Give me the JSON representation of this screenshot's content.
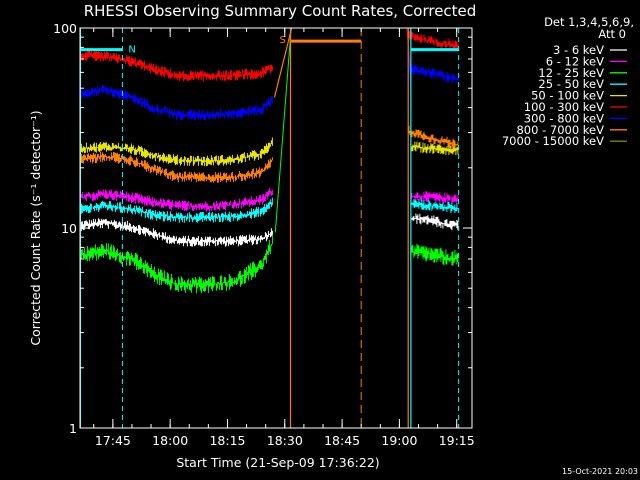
{
  "chart_data": {
    "type": "line",
    "title": "RHESSI Observing Summary Count Rates, Corrected",
    "xlabel": "Start Time (21-Sep-09 17:36:22)",
    "ylabel": "Corrected Count Rate (s⁻¹ detector⁻¹)",
    "y_scale": "log",
    "ylim": [
      1,
      100
    ],
    "y_ticks": [
      {
        "value": 1,
        "label": "1"
      },
      {
        "value": 10,
        "label": "10"
      },
      {
        "value": 100,
        "label": "100"
      }
    ],
    "xlim_minutes": [
      1056.4,
      1159.0
    ],
    "x_ticks": [
      {
        "minutes": 1065,
        "label": "17:45"
      },
      {
        "minutes": 1080,
        "label": "18:00"
      },
      {
        "minutes": 1095,
        "label": "18:15"
      },
      {
        "minutes": 1110,
        "label": "18:30"
      },
      {
        "minutes": 1125,
        "label": "18:45"
      },
      {
        "minutes": 1140,
        "label": "19:00"
      },
      {
        "minutes": 1155,
        "label": "19:15"
      }
    ],
    "legend": {
      "position": "right",
      "header": [
        "Det 1,3,4,5,6,9,",
        "Att 0"
      ]
    },
    "series": [
      {
        "name": "3 - 6 keV",
        "color": "#ffffff",
        "segA": [
          [
            1056.5,
            10.3
          ],
          [
            1063,
            10.6
          ],
          [
            1070,
            10.1
          ],
          [
            1076,
            9.3
          ],
          [
            1082,
            8.6
          ],
          [
            1090,
            8.6
          ],
          [
            1097,
            8.6
          ],
          [
            1104,
            8.8
          ],
          [
            1107,
            9.6
          ]
        ],
        "segB": [
          [
            1143,
            11.2
          ],
          [
            1148,
            11.0
          ],
          [
            1152,
            10.4
          ],
          [
            1155.5,
            10.3
          ]
        ]
      },
      {
        "name": "6 - 12 keV",
        "color": "#ff00ff",
        "segA": [
          [
            1056.5,
            14.2
          ],
          [
            1063,
            14.8
          ],
          [
            1070,
            14.2
          ],
          [
            1076,
            13.4
          ],
          [
            1082,
            12.9
          ],
          [
            1090,
            12.8
          ],
          [
            1097,
            13.1
          ],
          [
            1104,
            13.8
          ],
          [
            1107,
            15.5
          ]
        ],
        "segB": [
          [
            1143,
            14.4
          ],
          [
            1148,
            14.3
          ],
          [
            1152,
            14.1
          ],
          [
            1155.5,
            14.0
          ]
        ]
      },
      {
        "name": "12 - 25 keV",
        "color": "#00ff00",
        "segA": [
          [
            1056.5,
            7.3
          ],
          [
            1063,
            7.7
          ],
          [
            1070,
            7.0
          ],
          [
            1076,
            5.8
          ],
          [
            1082,
            5.2
          ],
          [
            1090,
            5.2
          ],
          [
            1097,
            5.4
          ],
          [
            1104,
            6.5
          ],
          [
            1107,
            8.6
          ]
        ],
        "segB": [
          [
            1143,
            7.6
          ],
          [
            1148,
            7.4
          ],
          [
            1152,
            7.1
          ],
          [
            1155.5,
            7.0
          ]
        ]
      },
      {
        "name": "25 - 50 keV",
        "color": "#00ffff",
        "segA": [
          [
            1056.5,
            12.4
          ],
          [
            1063,
            12.9
          ],
          [
            1070,
            12.4
          ],
          [
            1076,
            11.6
          ],
          [
            1082,
            11.3
          ],
          [
            1090,
            11.3
          ],
          [
            1097,
            11.4
          ],
          [
            1104,
            12.1
          ],
          [
            1107,
            13.6
          ]
        ],
        "segB": [
          [
            1143,
            13.3
          ],
          [
            1148,
            12.9
          ],
          [
            1152,
            12.7
          ],
          [
            1155.5,
            12.6
          ]
        ]
      },
      {
        "name": "50 - 100 keV",
        "color": "#e6e600",
        "segA": [
          [
            1056.5,
            25.0
          ],
          [
            1063,
            25.5
          ],
          [
            1070,
            24.8
          ],
          [
            1076,
            23.0
          ],
          [
            1082,
            21.8
          ],
          [
            1090,
            21.7
          ],
          [
            1097,
            21.9
          ],
          [
            1104,
            23.5
          ],
          [
            1107,
            27.0
          ]
        ],
        "segB": [
          [
            1143,
            25.5
          ],
          [
            1148,
            25.0
          ],
          [
            1152,
            24.8
          ],
          [
            1155.5,
            24.6
          ]
        ]
      },
      {
        "name": "100 - 300 keV",
        "color": "#ff0000",
        "segA": [
          [
            1056.5,
            73.0
          ],
          [
            1063,
            72.0
          ],
          [
            1070,
            68.0
          ],
          [
            1076,
            62.0
          ],
          [
            1082,
            57.5
          ],
          [
            1090,
            57.5
          ],
          [
            1097,
            58.0
          ],
          [
            1104,
            59.5
          ],
          [
            1107,
            64.0
          ]
        ],
        "segB": [
          [
            1142.5,
            93.0
          ],
          [
            1146,
            88.0
          ],
          [
            1150,
            84.0
          ],
          [
            1155.5,
            82.0
          ]
        ]
      },
      {
        "name": "300 - 800 keV",
        "color": "#0000ff",
        "segA": [
          [
            1056.5,
            47.0
          ],
          [
            1063,
            49.0
          ],
          [
            1070,
            45.0
          ],
          [
            1076,
            39.5
          ],
          [
            1082,
            36.8
          ],
          [
            1090,
            36.8
          ],
          [
            1097,
            37.5
          ],
          [
            1104,
            39.0
          ],
          [
            1107,
            45.0
          ]
        ],
        "segB": [
          [
            1142.5,
            63.0
          ],
          [
            1146,
            61.0
          ],
          [
            1150,
            58.5
          ],
          [
            1155.5,
            55.5
          ]
        ]
      },
      {
        "name": "800 - 7000 keV",
        "color": "#ff8000",
        "segA": [
          [
            1056.5,
            22.0
          ],
          [
            1063,
            22.8
          ],
          [
            1070,
            21.8
          ],
          [
            1076,
            19.5
          ],
          [
            1082,
            18.0
          ],
          [
            1090,
            17.9
          ],
          [
            1097,
            18.0
          ],
          [
            1104,
            19.0
          ],
          [
            1107,
            22.0
          ]
        ],
        "segB": [
          [
            1142.5,
            30.5
          ],
          [
            1146,
            29.0
          ],
          [
            1150,
            27.5
          ],
          [
            1155.5,
            26.0
          ]
        ]
      },
      {
        "name": "7000 - 15000 keV",
        "color": "#808000",
        "segA": [],
        "segB": []
      }
    ],
    "annotations": {
      "night_markers": [
        {
          "label": "N",
          "color": "#00ffff",
          "start_min": 1056.5,
          "end_min": 1067.5
        }
      ],
      "night_bar_end_min": 1155.5,
      "saa": {
        "label": "S",
        "color": "#ff8000",
        "start_min": 1111.5,
        "end_min": 1130.0
      },
      "cyan_dashed_min": [
        1067.5,
        1155.5
      ],
      "cyan_solid_min": [
        1056.5,
        1143.0
      ],
      "orange_solid_min": [
        1111.5,
        1142.3
      ],
      "orange_dashed_min": [
        1130.0
      ],
      "spike": {
        "start_min": 1107.3,
        "end_min": 1111.8,
        "peak": 100
      },
      "spike_b": {
        "start_min": 1142.0,
        "end_min": 1143.0,
        "peak": 100
      }
    }
  },
  "footer": {
    "timestamp": "15-Oct-2021 20:03"
  }
}
